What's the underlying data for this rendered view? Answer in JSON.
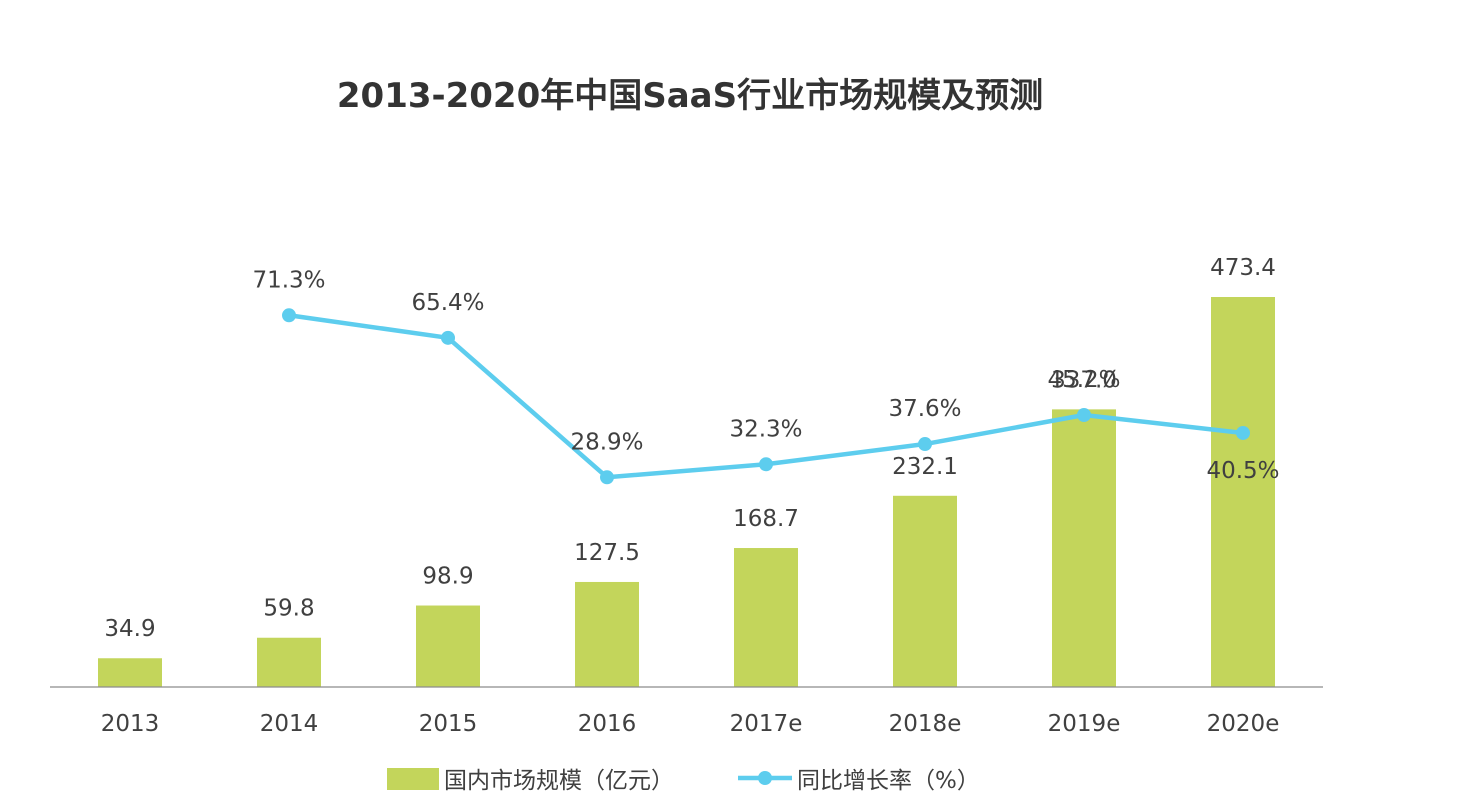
{
  "chart_data": {
    "type": "bar",
    "title": "2013-2020年中国SaaS行业市场规模及预测",
    "categories": [
      "2013",
      "2014",
      "2015",
      "2016",
      "2017e",
      "2018e",
      "2019e",
      "2020e"
    ],
    "series": [
      {
        "name": "国内市场规模（亿元）",
        "type": "bar",
        "color": "#c3d55b",
        "values": [
          34.9,
          59.8,
          98.9,
          127.5,
          168.7,
          232.1,
          337.0,
          473.4
        ],
        "labels": [
          "34.9",
          "59.8",
          "98.9",
          "127.5",
          "168.7",
          "232.1",
          "337.0",
          "473.4"
        ]
      },
      {
        "name": "同比增长率（%）",
        "type": "line",
        "color": "#5dcdee",
        "values": [
          null,
          71.3,
          65.4,
          28.9,
          32.3,
          37.6,
          45.2,
          40.5
        ],
        "labels": [
          "",
          "71.3%",
          "65.4%",
          "28.9%",
          "32.3%",
          "37.6%",
          "45.2%",
          "40.5%"
        ]
      }
    ],
    "legend_position": "bottom",
    "grid": false
  }
}
